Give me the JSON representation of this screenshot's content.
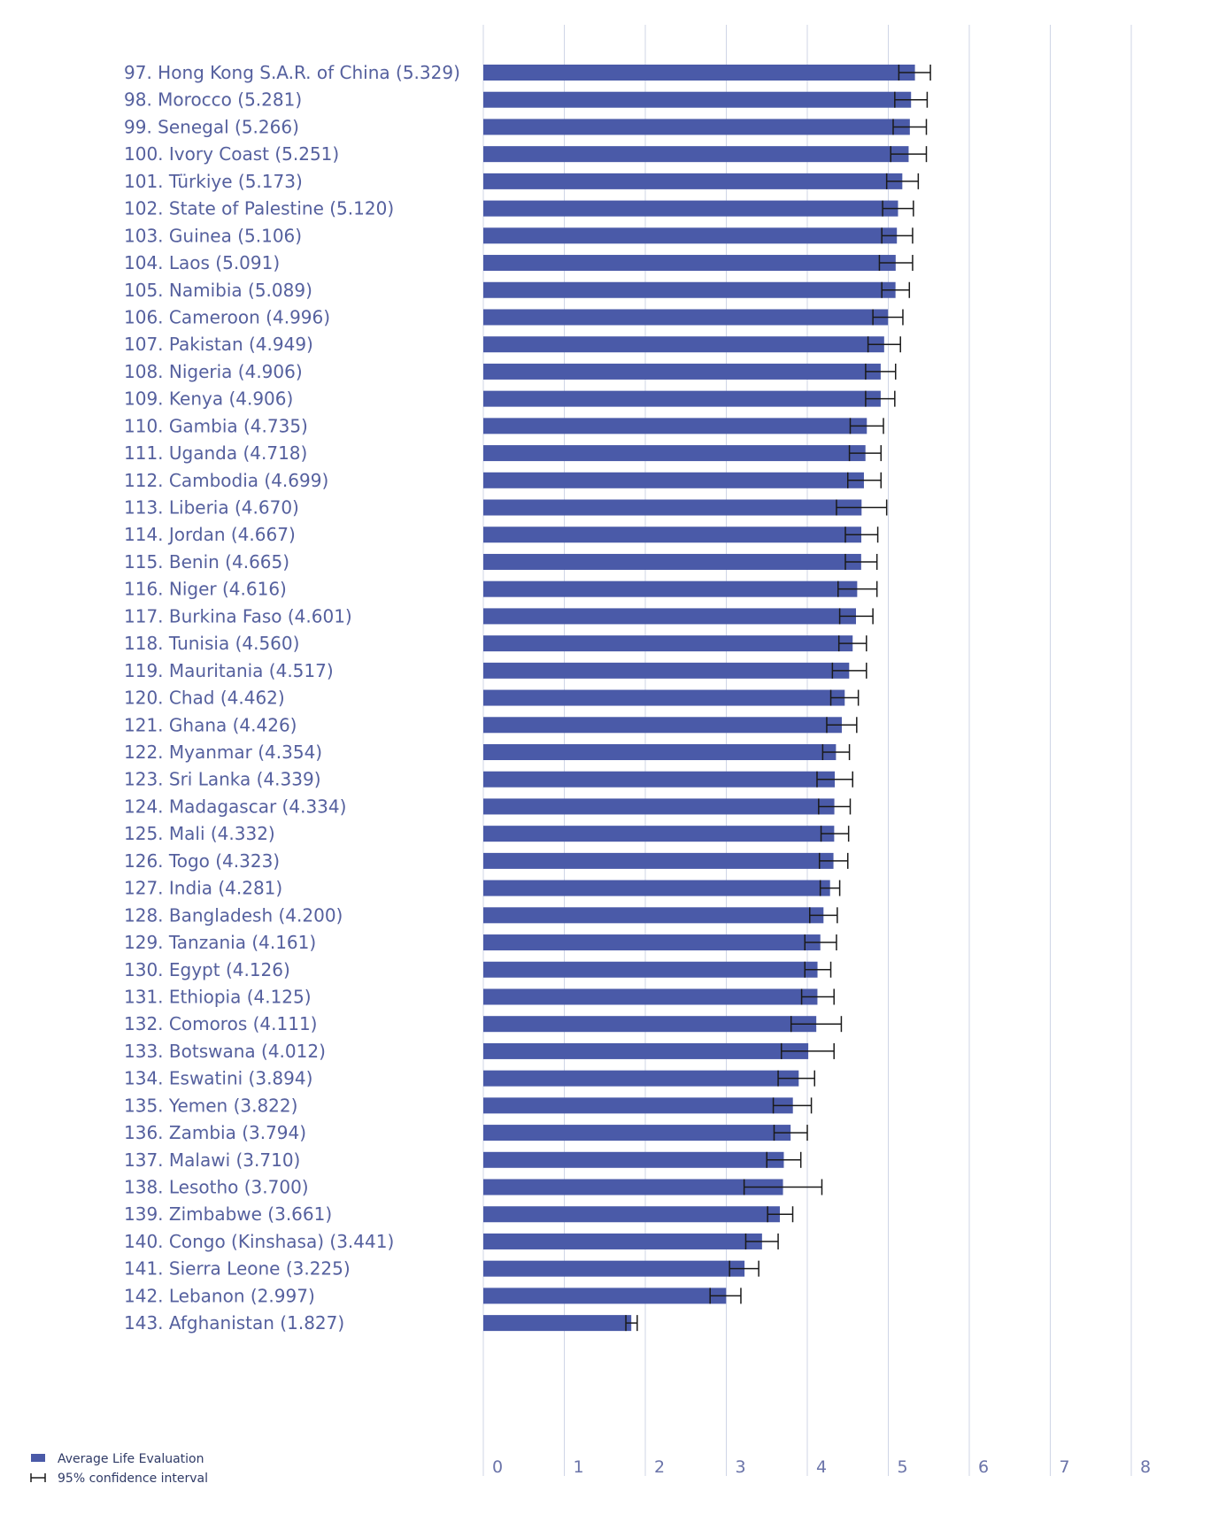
{
  "chart_data": {
    "type": "bar",
    "orientation": "horizontal",
    "categories": [
      "97.  Hong Kong S.A.R. of China (5.329)",
      "98.  Morocco (5.281)",
      "99.  Senegal (5.266)",
      "100. Ivory Coast (5.251)",
      "101.  Türkiye (5.173)",
      "102. State of Palestine (5.120)",
      "103. Guinea (5.106)",
      "104. Laos (5.091)",
      "105. Namibia (5.089)",
      "106. Cameroon (4.996)",
      "107. Pakistan (4.949)",
      "108. Nigeria (4.906)",
      "109. Kenya (4.906)",
      "110.  Gambia (4.735)",
      "111.  Uganda (4.718)",
      "112.  Cambodia (4.699)",
      "113.  Liberia (4.670)",
      "114.  Jordan (4.667)",
      "115.  Benin (4.665)",
      "116.  Niger (4.616)",
      "117.  Burkina Faso (4.601)",
      "118.  Tunisia (4.560)",
      "119.  Mauritania (4.517)",
      "120. Chad (4.462)",
      "121.  Ghana (4.426)",
      "122. Myanmar (4.354)",
      "123. Sri Lanka (4.339)",
      "124. Madagascar (4.334)",
      "125. Mali (4.332)",
      "126. Togo (4.323)",
      "127. India (4.281)",
      "128. Bangladesh (4.200)",
      "129. Tanzania (4.161)",
      "130. Egypt (4.126)",
      "131.  Ethiopia (4.125)",
      "132. Comoros (4.111)",
      "133. Botswana (4.012)",
      "134. Eswatini (3.894)",
      "135. Yemen (3.822)",
      "136. Zambia (3.794)",
      "137. Malawi (3.710)",
      "138. Lesotho (3.700)",
      "139. Zimbabwe (3.661)",
      "140. Congo  (Kinshasa) (3.441)",
      "141.  Sierra Leone (3.225)",
      "142. Lebanon (2.997)",
      "143. Afghanistan (1.827)"
    ],
    "values": [
      5.329,
      5.281,
      5.266,
      5.251,
      5.173,
      5.12,
      5.106,
      5.091,
      5.089,
      4.996,
      4.949,
      4.906,
      4.906,
      4.735,
      4.718,
      4.699,
      4.67,
      4.667,
      4.665,
      4.616,
      4.601,
      4.56,
      4.517,
      4.462,
      4.426,
      4.354,
      4.339,
      4.334,
      4.332,
      4.323,
      4.281,
      4.2,
      4.161,
      4.126,
      4.125,
      4.111,
      4.012,
      3.894,
      3.822,
      3.794,
      3.71,
      3.7,
      3.661,
      3.441,
      3.225,
      2.997,
      1.827
    ],
    "ci_low": [
      5.13,
      5.08,
      5.06,
      5.03,
      4.98,
      4.93,
      4.92,
      4.89,
      4.92,
      4.81,
      4.75,
      4.72,
      4.72,
      4.53,
      4.52,
      4.5,
      4.36,
      4.47,
      4.47,
      4.38,
      4.4,
      4.39,
      4.31,
      4.29,
      4.24,
      4.19,
      4.12,
      4.14,
      4.17,
      4.15,
      4.16,
      4.03,
      3.97,
      3.97,
      3.93,
      3.8,
      3.68,
      3.64,
      3.58,
      3.59,
      3.5,
      3.22,
      3.51,
      3.24,
      3.04,
      2.8,
      1.76
    ],
    "ci_high": [
      5.52,
      5.48,
      5.47,
      5.47,
      5.37,
      5.31,
      5.3,
      5.3,
      5.26,
      5.18,
      5.15,
      5.09,
      5.08,
      4.94,
      4.91,
      4.91,
      4.98,
      4.87,
      4.86,
      4.86,
      4.81,
      4.73,
      4.73,
      4.63,
      4.61,
      4.52,
      4.56,
      4.53,
      4.51,
      4.5,
      4.4,
      4.37,
      4.36,
      4.29,
      4.33,
      4.42,
      4.33,
      4.09,
      4.05,
      4.0,
      3.92,
      4.18,
      3.82,
      3.64,
      3.4,
      3.18,
      1.9
    ],
    "xlim": [
      0,
      8
    ],
    "xticks": [
      "0",
      "1",
      "2",
      "3",
      "4",
      "5",
      "6",
      "7",
      "8"
    ],
    "grid": true,
    "legend_position": "bottom-left",
    "legend": [
      "Average Life Evaluation",
      "95% confidence interval"
    ],
    "colors": {
      "bar": "#4a5aa8",
      "error_bar": "#1a1a1a",
      "grid": "#cfd5e6",
      "label": "#55609e"
    }
  }
}
